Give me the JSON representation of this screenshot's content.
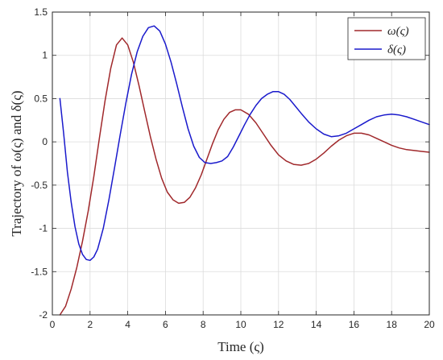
{
  "chart_data": {
    "type": "line",
    "xlabel": "Time (ς)",
    "ylabel": "Trajectory of ω(ς) and δ(ς)",
    "xlim": [
      0,
      20
    ],
    "ylim": [
      -2,
      1.5
    ],
    "xticks": [
      0,
      2,
      4,
      6,
      8,
      10,
      12,
      14,
      16,
      18,
      20
    ],
    "yticks": [
      -2,
      -1.5,
      -1,
      -0.5,
      0,
      0.5,
      1,
      1.5
    ],
    "xtick_labels": [
      "0",
      "2",
      "4",
      "6",
      "8",
      "10",
      "12",
      "14",
      "16",
      "18",
      "20"
    ],
    "ytick_labels": [
      "-2",
      "-1.5",
      "-1",
      "-0.5",
      "0",
      "0.5",
      "1",
      "1.5"
    ],
    "grid": true,
    "legend_position": "top-right",
    "series": [
      {
        "name": "ω(ς)",
        "color": "#a0282b",
        "x": [
          0.4,
          0.7,
          1.0,
          1.3,
          1.6,
          1.9,
          2.2,
          2.5,
          2.8,
          3.1,
          3.4,
          3.7,
          4.0,
          4.3,
          4.6,
          4.9,
          5.2,
          5.5,
          5.8,
          6.1,
          6.4,
          6.7,
          7.0,
          7.3,
          7.6,
          7.9,
          8.2,
          8.5,
          8.8,
          9.1,
          9.4,
          9.7,
          10.0,
          10.4,
          10.8,
          11.2,
          11.6,
          12.0,
          12.4,
          12.8,
          13.2,
          13.6,
          14.0,
          14.4,
          14.8,
          15.2,
          15.6,
          16.0,
          16.4,
          16.8,
          17.2,
          17.6,
          18.0,
          18.4,
          18.8,
          19.2,
          19.6,
          20.0
        ],
        "y": [
          -2.0,
          -1.9,
          -1.7,
          -1.45,
          -1.15,
          -0.8,
          -0.4,
          0.05,
          0.48,
          0.85,
          1.12,
          1.2,
          1.12,
          0.92,
          0.65,
          0.35,
          0.06,
          -0.2,
          -0.42,
          -0.58,
          -0.67,
          -0.71,
          -0.7,
          -0.64,
          -0.53,
          -0.38,
          -0.2,
          -0.02,
          0.14,
          0.26,
          0.34,
          0.37,
          0.37,
          0.32,
          0.22,
          0.09,
          -0.04,
          -0.15,
          -0.22,
          -0.26,
          -0.27,
          -0.25,
          -0.2,
          -0.13,
          -0.05,
          0.02,
          0.07,
          0.1,
          0.1,
          0.08,
          0.04,
          0.0,
          -0.04,
          -0.07,
          -0.09,
          -0.1,
          -0.11,
          -0.12
        ]
      },
      {
        "name": "δ(ς)",
        "color": "#1a1acc",
        "x": [
          0.4,
          0.6,
          0.8,
          1.0,
          1.2,
          1.4,
          1.6,
          1.8,
          2.0,
          2.2,
          2.4,
          2.7,
          3.0,
          3.3,
          3.6,
          3.9,
          4.2,
          4.5,
          4.8,
          5.1,
          5.4,
          5.7,
          6.0,
          6.3,
          6.6,
          6.9,
          7.2,
          7.5,
          7.8,
          8.1,
          8.4,
          8.7,
          9.0,
          9.3,
          9.6,
          9.9,
          10.2,
          10.5,
          10.8,
          11.1,
          11.4,
          11.7,
          12.0,
          12.3,
          12.6,
          12.9,
          13.2,
          13.6,
          14.0,
          14.4,
          14.8,
          15.2,
          15.6,
          16.0,
          16.4,
          16.8,
          17.2,
          17.6,
          18.0,
          18.4,
          18.8,
          19.2,
          19.6,
          20.0
        ],
        "y": [
          0.5,
          0.1,
          -0.35,
          -0.7,
          -0.98,
          -1.18,
          -1.3,
          -1.36,
          -1.37,
          -1.33,
          -1.24,
          -1.0,
          -0.67,
          -0.3,
          0.08,
          0.45,
          0.78,
          1.04,
          1.22,
          1.32,
          1.34,
          1.28,
          1.13,
          0.92,
          0.67,
          0.4,
          0.15,
          -0.05,
          -0.18,
          -0.24,
          -0.25,
          -0.24,
          -0.22,
          -0.17,
          -0.06,
          0.07,
          0.2,
          0.32,
          0.42,
          0.5,
          0.55,
          0.58,
          0.58,
          0.55,
          0.49,
          0.41,
          0.33,
          0.23,
          0.15,
          0.09,
          0.06,
          0.07,
          0.1,
          0.15,
          0.2,
          0.25,
          0.29,
          0.31,
          0.32,
          0.31,
          0.29,
          0.26,
          0.23,
          0.2
        ]
      }
    ]
  }
}
